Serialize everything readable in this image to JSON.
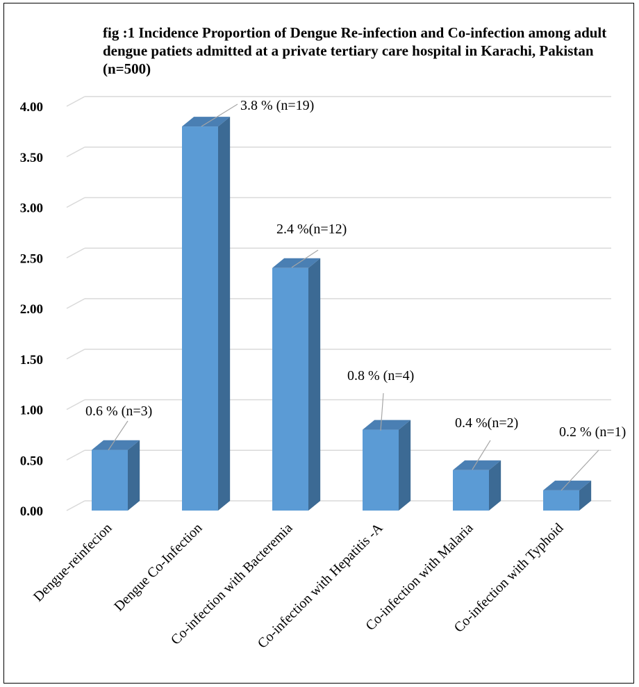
{
  "chart_data": {
    "type": "bar",
    "title": "fig :1 Incidence Proportion of Dengue Re-infection and Co-infection among adult dengue patiets admitted at a private tertiary care hospital in Karachi, Pakistan (n=500)",
    "categories": [
      "Dengue-reinfecion",
      "Dengue Co-Infection",
      "Co-infection with Bacteremia",
      "Co-infection with Hepatitis -A",
      "Co-infection with Malaria",
      "Co-infection with Typhoid"
    ],
    "values": [
      0.6,
      3.8,
      2.4,
      0.8,
      0.4,
      0.2
    ],
    "data_labels": [
      "0.6 % (n=3)",
      "3.8 % (n=19)",
      "2.4 %(n=12)",
      "0.8 % (n=4)",
      "0.4 %(n=2)",
      "0.2 % (n=1)"
    ],
    "yticks": [
      "0.00",
      "0.50",
      "1.00",
      "1.50",
      "2.00",
      "2.50",
      "3.00",
      "3.50",
      "4.00"
    ],
    "ylim": [
      0,
      4.0
    ],
    "xlabel": "",
    "ylabel": "",
    "grid": true,
    "style": "3d-column",
    "colors": {
      "bar_front": "#5b9bd5",
      "bar_side": "#3c6a94",
      "bar_top": "#4a7fb3",
      "grid": "#d9d9d9"
    }
  }
}
